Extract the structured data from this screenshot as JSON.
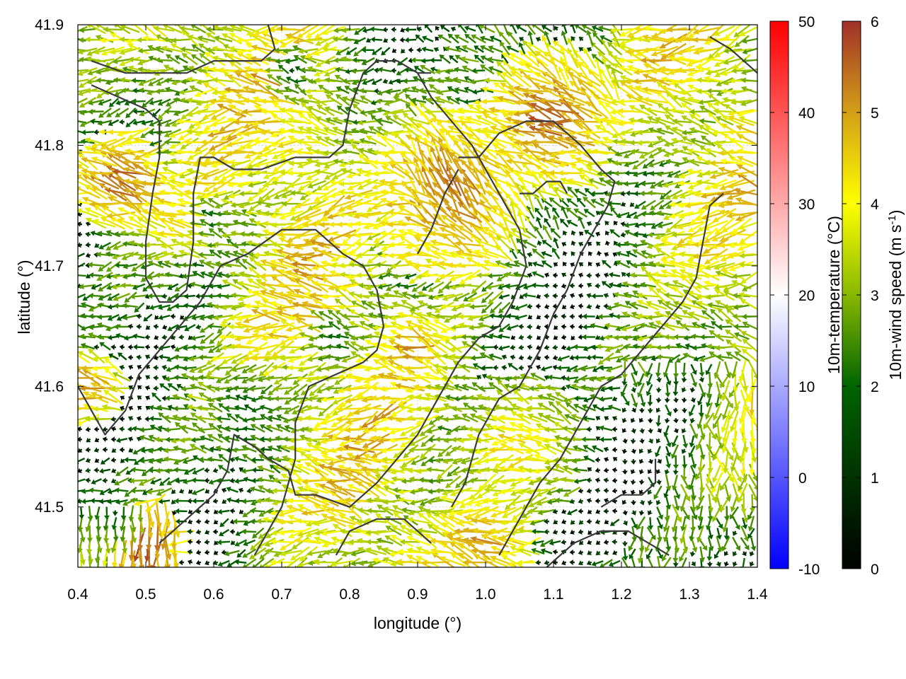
{
  "chart_data": {
    "type": "vector-field",
    "title": "",
    "xlabel": "longitude (°)",
    "ylabel": "latitude (°)",
    "xlim": [
      0.4,
      1.4
    ],
    "ylim": [
      41.45,
      41.9
    ],
    "x_ticks": [
      "0.4",
      "0.5",
      "0.6",
      "0.7",
      "0.8",
      "0.9",
      "1.0",
      "1.1",
      "1.2",
      "1.3",
      "1.4"
    ],
    "y_ticks": [
      "41.5",
      "41.6",
      "41.7",
      "41.8",
      "41.9"
    ],
    "x_tick_values": [
      0.4,
      0.5,
      0.6,
      0.7,
      0.8,
      0.9,
      1.0,
      1.1,
      1.2,
      1.3,
      1.4
    ],
    "y_tick_values": [
      41.5,
      41.6,
      41.7,
      41.8,
      41.9
    ],
    "grid": true,
    "colorbars": [
      {
        "name": "temperature",
        "label": "10m-temperature (°C)",
        "range": [
          -10,
          50
        ],
        "ticks": [
          "-10",
          "0",
          "10",
          "20",
          "30",
          "40",
          "50"
        ],
        "tick_values": [
          -10,
          0,
          10,
          20,
          30,
          40,
          50
        ],
        "colors": [
          "#0000ff",
          "#ffffff",
          "#ff0000"
        ]
      },
      {
        "name": "wind_speed",
        "label_main": "10m-wind speed (m s",
        "label_sup": "-1",
        "label_end": ")",
        "range": [
          0,
          6
        ],
        "ticks": [
          "0",
          "1",
          "2",
          "3",
          "4",
          "5",
          "6"
        ],
        "tick_values": [
          0,
          1,
          2,
          3,
          4,
          5,
          6
        ],
        "colors": [
          "#000000",
          "#006400",
          "#88b800",
          "#ffff00",
          "#d4a017",
          "#a0302a"
        ]
      }
    ],
    "coastlines": [
      [
        [
          0.42,
          41.87
        ],
        [
          0.47,
          41.86
        ],
        [
          0.52,
          41.86
        ],
        [
          0.56,
          41.86
        ],
        [
          0.6,
          41.87
        ],
        [
          0.64,
          41.87
        ],
        [
          0.67,
          41.87
        ],
        [
          0.69,
          41.88
        ],
        [
          0.68,
          41.9
        ]
      ],
      [
        [
          0.42,
          41.85
        ],
        [
          0.46,
          41.84
        ],
        [
          0.5,
          41.83
        ],
        [
          0.52,
          41.82
        ],
        [
          0.52,
          41.79
        ],
        [
          0.51,
          41.76
        ],
        [
          0.5,
          41.72
        ],
        [
          0.5,
          41.69
        ],
        [
          0.52,
          41.67
        ],
        [
          0.54,
          41.67
        ],
        [
          0.56,
          41.68
        ],
        [
          0.57,
          41.72
        ],
        [
          0.57,
          41.76
        ],
        [
          0.58,
          41.79
        ],
        [
          0.6,
          41.79
        ],
        [
          0.63,
          41.78
        ],
        [
          0.67,
          41.78
        ],
        [
          0.72,
          41.79
        ],
        [
          0.77,
          41.79
        ],
        [
          0.79,
          41.8
        ],
        [
          0.8,
          41.83
        ],
        [
          0.82,
          41.86
        ],
        [
          0.84,
          41.87
        ],
        [
          0.87,
          41.87
        ],
        [
          0.9,
          41.86
        ],
        [
          0.92,
          41.86
        ]
      ],
      [
        [
          0.4,
          41.6
        ],
        [
          0.42,
          41.58
        ],
        [
          0.44,
          41.56
        ],
        [
          0.47,
          41.58
        ],
        [
          0.49,
          41.61
        ],
        [
          0.52,
          41.63
        ],
        [
          0.55,
          41.65
        ],
        [
          0.58,
          41.67
        ],
        [
          0.61,
          41.7
        ],
        [
          0.65,
          41.71
        ],
        [
          0.7,
          41.73
        ],
        [
          0.75,
          41.73
        ],
        [
          0.77,
          41.72
        ],
        [
          0.79,
          41.71
        ],
        [
          0.82,
          41.7
        ],
        [
          0.84,
          41.68
        ],
        [
          0.85,
          41.65
        ],
        [
          0.84,
          41.63
        ],
        [
          0.82,
          41.62
        ],
        [
          0.78,
          41.61
        ],
        [
          0.74,
          41.6
        ],
        [
          0.72,
          41.57
        ],
        [
          0.72,
          41.54
        ],
        [
          0.71,
          41.52
        ],
        [
          0.7,
          41.5
        ],
        [
          0.68,
          41.48
        ],
        [
          0.66,
          41.46
        ]
      ],
      [
        [
          0.52,
          41.47
        ],
        [
          0.56,
          41.49
        ],
        [
          0.6,
          41.51
        ],
        [
          0.62,
          41.53
        ],
        [
          0.63,
          41.56
        ],
        [
          0.66,
          41.55
        ],
        [
          0.68,
          41.54
        ],
        [
          0.71,
          41.53
        ],
        [
          0.72,
          41.51
        ],
        [
          0.75,
          41.51
        ],
        [
          0.8,
          41.5
        ],
        [
          0.84,
          41.52
        ],
        [
          0.87,
          41.54
        ],
        [
          0.9,
          41.56
        ],
        [
          0.93,
          41.59
        ],
        [
          0.96,
          41.62
        ],
        [
          0.99,
          41.64
        ],
        [
          1.02,
          41.65
        ],
        [
          1.04,
          41.67
        ],
        [
          1.06,
          41.7
        ],
        [
          1.05,
          41.73
        ],
        [
          1.03,
          41.75
        ],
        [
          1.0,
          41.78
        ],
        [
          0.98,
          41.8
        ],
        [
          0.95,
          41.82
        ],
        [
          0.92,
          41.84
        ],
        [
          0.9,
          41.86
        ]
      ],
      [
        [
          0.78,
          41.46
        ],
        [
          0.8,
          41.48
        ],
        [
          0.84,
          41.49
        ],
        [
          0.88,
          41.49
        ],
        [
          0.9,
          41.48
        ],
        [
          0.92,
          41.47
        ]
      ],
      [
        [
          0.95,
          41.5
        ],
        [
          0.97,
          41.52
        ],
        [
          0.99,
          41.56
        ],
        [
          1.02,
          41.59
        ],
        [
          1.05,
          41.6
        ],
        [
          1.08,
          41.63
        ],
        [
          1.1,
          41.66
        ],
        [
          1.12,
          41.68
        ],
        [
          1.14,
          41.71
        ],
        [
          1.16,
          41.73
        ],
        [
          1.18,
          41.75
        ],
        [
          1.19,
          41.77
        ],
        [
          1.17,
          41.78
        ],
        [
          1.14,
          41.8
        ],
        [
          1.1,
          41.82
        ],
        [
          1.06,
          41.82
        ],
        [
          1.02,
          41.81
        ],
        [
          0.99,
          41.79
        ],
        [
          0.96,
          41.79
        ]
      ],
      [
        [
          1.02,
          41.46
        ],
        [
          1.05,
          41.49
        ],
        [
          1.08,
          41.52
        ],
        [
          1.11,
          41.54
        ],
        [
          1.14,
          41.57
        ],
        [
          1.17,
          41.6
        ],
        [
          1.2,
          41.61
        ],
        [
          1.23,
          41.63
        ],
        [
          1.26,
          41.65
        ],
        [
          1.29,
          41.67
        ],
        [
          1.31,
          41.69
        ],
        [
          1.32,
          41.72
        ],
        [
          1.33,
          41.75
        ],
        [
          1.35,
          41.76
        ]
      ],
      [
        [
          1.17,
          41.5
        ],
        [
          1.2,
          41.51
        ],
        [
          1.23,
          41.51
        ],
        [
          1.25,
          41.52
        ],
        [
          1.25,
          41.54
        ]
      ],
      [
        [
          1.09,
          41.45
        ],
        [
          1.13,
          41.47
        ],
        [
          1.17,
          41.48
        ],
        [
          1.21,
          41.48
        ],
        [
          1.24,
          41.47
        ],
        [
          1.27,
          41.46
        ]
      ],
      [
        [
          1.05,
          41.76
        ],
        [
          1.07,
          41.76
        ],
        [
          1.09,
          41.77
        ],
        [
          1.11,
          41.77
        ],
        [
          1.12,
          41.76
        ]
      ],
      [
        [
          0.9,
          41.71
        ],
        [
          0.92,
          41.73
        ],
        [
          0.94,
          41.76
        ],
        [
          0.96,
          41.78
        ]
      ],
      [
        [
          1.33,
          41.89
        ],
        [
          1.36,
          41.88
        ],
        [
          1.38,
          41.87
        ],
        [
          1.4,
          41.86
        ]
      ]
    ],
    "wind_field": {
      "grid_step_deg_x": 0.0125,
      "grid_step_deg_y": 0.0085,
      "max_speed": 6,
      "hotspots": [
        {
          "lon": 0.47,
          "lat": 41.77,
          "speed": 5.6,
          "radius": 0.035
        },
        {
          "lon": 0.5,
          "lat": 41.47,
          "speed": 5.8,
          "radius": 0.03
        },
        {
          "lon": 0.42,
          "lat": 41.6,
          "speed": 5.2,
          "radius": 0.025
        },
        {
          "lon": 0.95,
          "lat": 41.76,
          "speed": 5.4,
          "radius": 0.06
        },
        {
          "lon": 1.1,
          "lat": 41.82,
          "speed": 5.5,
          "radius": 0.05
        },
        {
          "lon": 0.9,
          "lat": 41.63,
          "speed": 5.0,
          "radius": 0.03
        },
        {
          "lon": 1.0,
          "lat": 41.47,
          "speed": 5.0,
          "radius": 0.04
        },
        {
          "lon": 1.28,
          "lat": 41.88,
          "speed": 4.5,
          "radius": 0.05
        },
        {
          "lon": 1.05,
          "lat": 41.55,
          "speed": 4.2,
          "radius": 0.05
        },
        {
          "lon": 0.72,
          "lat": 41.8,
          "speed": 4.0,
          "radius": 0.05
        },
        {
          "lon": 0.55,
          "lat": 41.74,
          "speed": 4.6,
          "radius": 0.03
        }
      ],
      "calm_zones": [
        {
          "lon": 0.45,
          "lat": 41.5,
          "radius": 0.05
        },
        {
          "lon": 0.65,
          "lat": 41.58,
          "radius": 0.07
        },
        {
          "lon": 0.78,
          "lat": 41.64,
          "radius": 0.04
        },
        {
          "lon": 0.72,
          "lat": 41.86,
          "radius": 0.04
        },
        {
          "lon": 0.6,
          "lat": 41.74,
          "radius": 0.03
        }
      ]
    }
  }
}
